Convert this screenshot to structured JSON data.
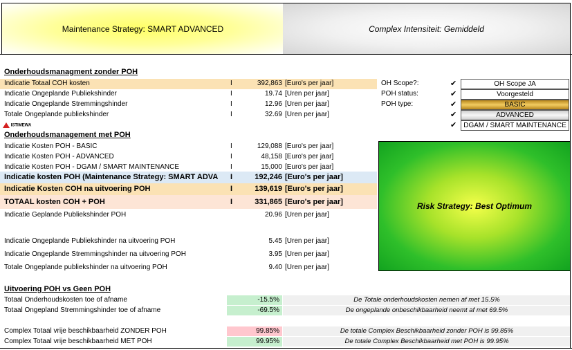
{
  "header": {
    "strategy": "Maintenance Strategy: SMART ADVANCED",
    "intensity": "Complex Intensiteit: Gemiddeld"
  },
  "section1": {
    "title": "Onderhoudsmanagment zonder POH",
    "rows": [
      {
        "label": "Indicatie Totaal COH kosten",
        "tick": "I",
        "value": "392,863",
        "unit": "[Euro's per jaar]"
      },
      {
        "label": "Indicatie Ongeplande Publiekshinder",
        "tick": "I",
        "value": "19.74",
        "unit": "[Uren per jaar]"
      },
      {
        "label": "Indicatie Ongeplande Stremmingshinder",
        "tick": "I",
        "value": "12.96",
        "unit": "[Uren per jaar]"
      },
      {
        "label": "Totale Ongeplande publiekshinder",
        "tick": "I",
        "value": "32.69",
        "unit": "[Uren per jaar]"
      }
    ]
  },
  "logo": {
    "text": "ISTIMEWA"
  },
  "section2": {
    "title": "Onderhoudsmanagement met POH",
    "rows": [
      {
        "label": "Indicatie Kosten POH - BASIC",
        "tick": "I",
        "value": "129,088",
        "unit": "[Euro's per jaar]"
      },
      {
        "label": "Indicatie Kosten POH - ADVANCED",
        "tick": "I",
        "value": "48,158",
        "unit": "[Euro's per jaar]"
      },
      {
        "label": "Indicatie Kosten POH - DGAM / SMART MAINTENANCE",
        "tick": "I",
        "value": "15,000",
        "unit": "[Euro's per jaar]"
      },
      {
        "label": "Indicatie kosten POH (Maintenance Strategy: SMART ADVA",
        "tick": "I",
        "value": "192,246",
        "unit": "[Euro's per jaar]"
      },
      {
        "label": "Indicatie Kosten COH na uitvoering POH",
        "tick": "I",
        "value": "139,619",
        "unit": "[Euro's per jaar]"
      },
      {
        "label": "TOTAAL kosten COH + POH",
        "tick": "I",
        "value": "331,865",
        "unit": "[Euro's per jaar]"
      },
      {
        "label": "Indicatie Geplande Publiekshinder POH",
        "tick": "",
        "value": "20.96",
        "unit": "[Uren per jaar]"
      },
      {
        "label": "Indicatie Ongeplande Publiekshinder na uitvoering POH",
        "tick": "",
        "value": "5.45",
        "unit": "[Uren per jaar]"
      },
      {
        "label": "Indicatie Ongeplande Stremmingshinder na uitvoering POH",
        "tick": "",
        "value": "3.95",
        "unit": "[Uren per jaar]"
      },
      {
        "label": "Totale Ongeplande publiekshinder na uitvoering POH",
        "tick": "",
        "value": "9.40",
        "unit": "[Uren per jaar]"
      }
    ]
  },
  "poh_panel": {
    "labels": [
      "OH Scope?:",
      "POH status:",
      "POH type:"
    ],
    "check": "✔",
    "boxes": [
      "OH Scope JA",
      "Voorgesteld",
      "BASIC",
      "ADVANCED",
      "DGAM / SMART MAINTENANCE"
    ]
  },
  "risk": {
    "label": "Risk Strategy: Best Optimum"
  },
  "section3": {
    "title": "Uitvoering POH vs Geen POH",
    "rows": [
      {
        "label": "Totaal Onderhoudskosten toe of afname",
        "value": "-15.5%",
        "note": "De Totale onderhoudskosten nemen af met 15.5%"
      },
      {
        "label": "Totaal Ongepland Stremmingshinder toe of afname",
        "value": "-69.5%",
        "note": "De ongeplande onbeschikbaarheid neemt af met 69.5%"
      },
      {
        "label": "Complex Totaal vrije beschikbaarheid ZONDER POH",
        "value": "99.85%",
        "note": "De totale Complex Beschikbaarheid zonder POH is 99.85%"
      },
      {
        "label": "Complex Totaal vrije beschikbaarheid MET POH",
        "value": "99.95%",
        "note": "De totale Complex Beschikbaarheid met POH is 99.95%"
      }
    ]
  },
  "colors": {
    "highlight_orange": "#fbe2b4",
    "highlight_blue": "#dce9f5",
    "highlight_peach": "#fde5d6",
    "positive": "#c6efce",
    "negative": "#ffc7ce"
  }
}
